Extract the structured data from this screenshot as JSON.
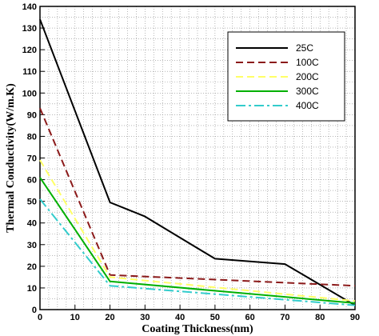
{
  "chart_data": {
    "type": "line",
    "xlabel": "Coating Thickness(nm)",
    "ylabel": "Thermal Conductivity(W/m.K)",
    "xlim": [
      0,
      90
    ],
    "ylim": [
      0,
      140
    ],
    "xticks": [
      0,
      10,
      20,
      30,
      40,
      50,
      60,
      70,
      80,
      90
    ],
    "yticks": [
      0,
      10,
      20,
      30,
      40,
      50,
      60,
      70,
      80,
      90,
      100,
      110,
      120,
      130,
      140
    ],
    "grid": true,
    "legend_position": "top-right",
    "series": [
      {
        "name": "25C",
        "color": "#000000",
        "dash": "solid",
        "x": [
          0,
          20,
          30,
          50,
          70,
          90
        ],
        "y": [
          134,
          49.5,
          43,
          23.5,
          21,
          2
        ]
      },
      {
        "name": "100C",
        "color": "#8b1a1a",
        "dash": "dashed",
        "x": [
          0,
          20,
          90
        ],
        "y": [
          93,
          16,
          11
        ]
      },
      {
        "name": "200C",
        "color": "#ffff66",
        "dash": "dashed",
        "x": [
          0,
          20,
          90
        ],
        "y": [
          69,
          15,
          4
        ]
      },
      {
        "name": "300C",
        "color": "#00b000",
        "dash": "solid",
        "x": [
          0,
          20,
          90
        ],
        "y": [
          61,
          13,
          3
        ]
      },
      {
        "name": "400C",
        "color": "#33cccc",
        "dash": "dashdot",
        "x": [
          0,
          20,
          90
        ],
        "y": [
          51,
          11,
          2
        ]
      }
    ]
  }
}
